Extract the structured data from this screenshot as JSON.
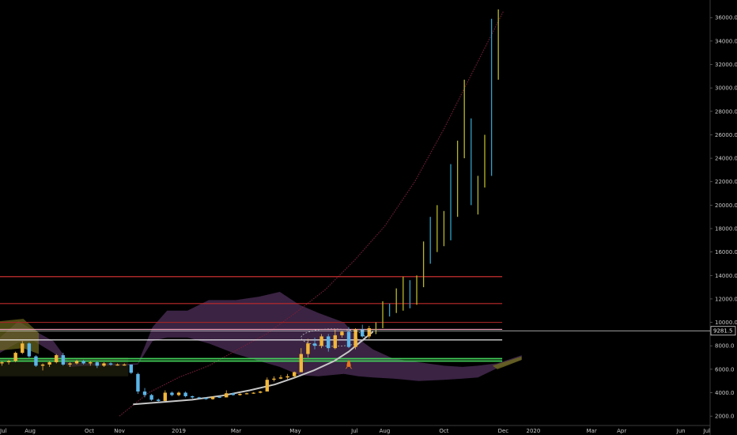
{
  "chart_data": {
    "type": "candlestick",
    "title": "",
    "xlabel": "",
    "ylabel": "",
    "x_range": [
      "2018-07",
      "2020-07"
    ],
    "ylim": [
      1200,
      37500
    ],
    "y_ticks": [
      2000,
      4000,
      6000,
      8000,
      10000,
      12000,
      14000,
      16000,
      18000,
      20000,
      22000,
      24000,
      26000,
      28000,
      30000,
      32000,
      34000,
      36000
    ],
    "y_tick_labels": [
      "2000.0",
      "4000.0",
      "6000.0",
      "8000.0",
      "10000.0",
      "12000.0",
      "14000.0",
      "16000.0",
      "18000.0",
      "20000.0",
      "22000.0",
      "24000.0",
      "26000.0",
      "28000.0",
      "30000.0",
      "32000.0",
      "34000.0",
      "36000.0"
    ],
    "x_ticks": [
      {
        "label": "Jul",
        "date": "2018-07-01"
      },
      {
        "label": "Aug",
        "date": "2018-08-01"
      },
      {
        "label": "Oct",
        "date": "2018-10-01"
      },
      {
        "label": "Nov",
        "date": "2018-11-01"
      },
      {
        "label": "2019",
        "date": "2019-01-01"
      },
      {
        "label": "Mar",
        "date": "2019-03-01"
      },
      {
        "label": "May",
        "date": "2019-05-01"
      },
      {
        "label": "Jul",
        "date": "2019-07-01"
      },
      {
        "label": "Aug",
        "date": "2019-08-01"
      },
      {
        "label": "Oct",
        "date": "2019-10-01"
      },
      {
        "label": "Dec",
        "date": "2019-12-01"
      },
      {
        "label": "2020",
        "date": "2020-01-01"
      },
      {
        "label": "Mar",
        "date": "2020-03-01"
      },
      {
        "label": "Apr",
        "date": "2020-04-01"
      },
      {
        "label": "Jun",
        "date": "2020-06-01"
      },
      {
        "label": "Jul",
        "date": "2020-07-01"
      }
    ],
    "current_price": 9281.5,
    "current_price_label": "9281.5",
    "colors": {
      "background": "#000000",
      "up": "#f2b63a",
      "down": "#5bb5e8",
      "projection_up": "#b8b828",
      "projection_down": "#2fa3c9",
      "cloud": "#6a3f7a",
      "cloud_bull": "#6e6a1e",
      "curve": "#7a1f3a",
      "arc": "#c7c7c7",
      "rocket": "#e8741c"
    },
    "horizontal_lines": [
      {
        "price": 13900,
        "color": "#e03535"
      },
      {
        "price": 11600,
        "color": "#c02a2a"
      },
      {
        "price": 10000,
        "color": "#a02525"
      },
      {
        "price": 9400,
        "color": "#f0a0b8"
      },
      {
        "price": 8500,
        "color": "#ffffff"
      },
      {
        "price": 6900,
        "color": "#43d15a"
      },
      {
        "price": 6700,
        "color": "#43d15a"
      }
    ],
    "cloud_upper": [
      [
        "2018-07-01",
        8700
      ],
      [
        "2018-07-20",
        10100
      ],
      [
        "2018-08-05",
        9300
      ],
      [
        "2018-08-25",
        8400
      ],
      [
        "2018-09-10",
        6600
      ],
      [
        "2018-10-01",
        6500
      ],
      [
        "2018-10-20",
        6500
      ],
      [
        "2018-11-05",
        6450
      ],
      [
        "2018-11-20",
        6500
      ],
      [
        "2018-12-05",
        9600
      ],
      [
        "2018-12-20",
        11000
      ],
      [
        "2019-01-10",
        11000
      ],
      [
        "2019-02-01",
        11900
      ],
      [
        "2019-03-01",
        11900
      ],
      [
        "2019-03-25",
        12200
      ],
      [
        "2019-04-15",
        12600
      ],
      [
        "2019-05-05",
        11500
      ],
      [
        "2019-05-25",
        10800
      ],
      [
        "2019-06-20",
        10000
      ],
      [
        "2019-07-05",
        8600
      ],
      [
        "2019-07-20",
        7700
      ],
      [
        "2019-08-10",
        6900
      ],
      [
        "2019-09-05",
        6600
      ],
      [
        "2019-10-01",
        6300
      ],
      [
        "2019-10-20",
        6200
      ],
      [
        "2019-11-05",
        6300
      ],
      [
        "2019-11-25",
        6500
      ],
      [
        "2019-12-20",
        7200
      ]
    ],
    "cloud_lower": [
      [
        "2018-07-01",
        7400
      ],
      [
        "2018-07-20",
        8300
      ],
      [
        "2018-08-05",
        8400
      ],
      [
        "2018-08-25",
        7400
      ],
      [
        "2018-09-10",
        6200
      ],
      [
        "2018-10-01",
        6300
      ],
      [
        "2018-10-20",
        6300
      ],
      [
        "2018-11-05",
        6300
      ],
      [
        "2018-11-20",
        6400
      ],
      [
        "2018-12-05",
        8400
      ],
      [
        "2018-12-20",
        8700
      ],
      [
        "2019-01-10",
        8700
      ],
      [
        "2019-02-01",
        8200
      ],
      [
        "2019-03-01",
        7300
      ],
      [
        "2019-03-25",
        6700
      ],
      [
        "2019-04-15",
        6200
      ],
      [
        "2019-05-05",
        5500
      ],
      [
        "2019-05-25",
        5400
      ],
      [
        "2019-06-20",
        5600
      ],
      [
        "2019-07-05",
        5400
      ],
      [
        "2019-07-20",
        5300
      ],
      [
        "2019-08-10",
        5200
      ],
      [
        "2019-09-05",
        5000
      ],
      [
        "2019-10-01",
        5100
      ],
      [
        "2019-10-20",
        5200
      ],
      [
        "2019-11-05",
        5300
      ],
      [
        "2019-11-25",
        6100
      ],
      [
        "2019-12-20",
        6800
      ]
    ],
    "growth_curve": [
      [
        "2018-11-01",
        2000
      ],
      [
        "2018-12-01",
        4000
      ],
      [
        "2019-01-01",
        5300
      ],
      [
        "2019-02-01",
        6300
      ],
      [
        "2019-03-01",
        7600
      ],
      [
        "2019-04-01",
        9000
      ],
      [
        "2019-05-01",
        10800
      ],
      [
        "2019-06-01",
        12800
      ],
      [
        "2019-07-01",
        15300
      ],
      [
        "2019-08-01",
        18200
      ],
      [
        "2019-09-01",
        22000
      ],
      [
        "2019-10-01",
        26500
      ],
      [
        "2019-11-01",
        31600
      ],
      [
        "2019-12-01",
        36500
      ]
    ],
    "arc": [
      [
        "2018-11-15",
        3000
      ],
      [
        "2018-12-15",
        3200
      ],
      [
        "2019-01-15",
        3400
      ],
      [
        "2019-02-15",
        3750
      ],
      [
        "2019-03-15",
        4200
      ],
      [
        "2019-04-10",
        4700
      ],
      [
        "2019-05-01",
        5300
      ],
      [
        "2019-05-20",
        5900
      ],
      [
        "2019-06-10",
        6700
      ],
      [
        "2019-06-25",
        7500
      ],
      [
        "2019-07-08",
        8400
      ],
      [
        "2019-07-20",
        9200
      ]
    ],
    "candles": [
      [
        "2018-07-03",
        6500,
        6700,
        6300,
        6600
      ],
      [
        "2018-07-10",
        6600,
        6800,
        6400,
        6700
      ],
      [
        "2018-07-17",
        6700,
        7500,
        6600,
        7400
      ],
      [
        "2018-07-24",
        7400,
        8400,
        7300,
        8200
      ],
      [
        "2018-07-31",
        8200,
        8300,
        7000,
        7100
      ],
      [
        "2018-08-07",
        7100,
        7200,
        6200,
        6300
      ],
      [
        "2018-08-14",
        6300,
        6500,
        5900,
        6400
      ],
      [
        "2018-08-21",
        6400,
        6700,
        6200,
        6600
      ],
      [
        "2018-08-28",
        6600,
        7300,
        6500,
        7200
      ],
      [
        "2018-09-04",
        7200,
        7400,
        6300,
        6400
      ],
      [
        "2018-09-11",
        6400,
        6600,
        6200,
        6500
      ],
      [
        "2018-09-18",
        6500,
        6800,
        6400,
        6700
      ],
      [
        "2018-09-25",
        6700,
        6800,
        6400,
        6500
      ],
      [
        "2018-10-02",
        6500,
        6700,
        6300,
        6600
      ],
      [
        "2018-10-09",
        6600,
        6700,
        6100,
        6300
      ],
      [
        "2018-10-16",
        6300,
        6600,
        6200,
        6500
      ],
      [
        "2018-10-23",
        6500,
        6600,
        6300,
        6400
      ],
      [
        "2018-10-30",
        6400,
        6500,
        6300,
        6400
      ],
      [
        "2018-11-06",
        6400,
        6500,
        6300,
        6400
      ],
      [
        "2018-11-13",
        6400,
        6400,
        5600,
        5700
      ],
      [
        "2018-11-20",
        5600,
        5700,
        3900,
        4100
      ],
      [
        "2018-11-27",
        4100,
        4400,
        3600,
        3800
      ],
      [
        "2018-12-04",
        3800,
        3900,
        3300,
        3400
      ],
      [
        "2018-12-11",
        3400,
        3500,
        3200,
        3300
      ],
      [
        "2018-12-18",
        3300,
        4200,
        3300,
        4000
      ],
      [
        "2018-12-25",
        4000,
        4100,
        3700,
        3800
      ],
      [
        "2019-01-01",
        3800,
        4100,
        3700,
        4000
      ],
      [
        "2019-01-08",
        4000,
        4100,
        3600,
        3700
      ],
      [
        "2019-01-15",
        3700,
        3750,
        3500,
        3600
      ],
      [
        "2019-01-22",
        3600,
        3650,
        3450,
        3550
      ],
      [
        "2019-01-29",
        3550,
        3600,
        3400,
        3450
      ],
      [
        "2019-02-05",
        3450,
        3700,
        3400,
        3650
      ],
      [
        "2019-02-12",
        3650,
        3700,
        3550,
        3600
      ],
      [
        "2019-02-19",
        3600,
        4200,
        3600,
        3950
      ],
      [
        "2019-02-26",
        3950,
        4000,
        3750,
        3800
      ],
      [
        "2019-03-05",
        3800,
        3950,
        3750,
        3900
      ],
      [
        "2019-03-12",
        3900,
        4000,
        3850,
        3950
      ],
      [
        "2019-03-19",
        3950,
        4050,
        3900,
        4000
      ],
      [
        "2019-03-26",
        4000,
        4150,
        3950,
        4100
      ],
      [
        "2019-04-02",
        4100,
        5300,
        4100,
        5100
      ],
      [
        "2019-04-09",
        5100,
        5400,
        4950,
        5200
      ],
      [
        "2019-04-16",
        5200,
        5500,
        5150,
        5300
      ],
      [
        "2019-04-23",
        5300,
        5600,
        5150,
        5400
      ],
      [
        "2019-04-30",
        5400,
        5800,
        5250,
        5750
      ],
      [
        "2019-05-07",
        5750,
        7800,
        5750,
        7300
      ],
      [
        "2019-05-14",
        7300,
        8600,
        7000,
        8200
      ],
      [
        "2019-05-21",
        8200,
        8700,
        7700,
        8000
      ],
      [
        "2019-05-28",
        8000,
        9000,
        7800,
        8800
      ],
      [
        "2019-06-04",
        8800,
        9000,
        7500,
        7800
      ],
      [
        "2019-06-11",
        7800,
        9400,
        7700,
        8900
      ],
      [
        "2019-06-18",
        8900,
        9300,
        8700,
        9200
      ],
      [
        "2019-06-25",
        9200,
        9600,
        7800,
        7900
      ],
      [
        "2019-07-02",
        7900,
        9500,
        7700,
        9400
      ],
      [
        "2019-07-09",
        9400,
        9800,
        8700,
        8800
      ],
      [
        "2019-07-16",
        8800,
        9700,
        8600,
        9500
      ]
    ],
    "projection": [
      [
        "2019-07-23",
        9000,
        10000
      ],
      [
        "2019-07-30",
        9500,
        11800
      ],
      [
        "2019-08-06",
        10500,
        11600
      ],
      [
        "2019-08-13",
        10800,
        12900
      ],
      [
        "2019-08-20",
        11000,
        13900
      ],
      [
        "2019-08-27",
        11200,
        13600
      ],
      [
        "2019-09-03",
        11500,
        14000
      ],
      [
        "2019-09-10",
        13000,
        16900
      ],
      [
        "2019-09-17",
        15000,
        19000
      ],
      [
        "2019-09-24",
        16000,
        20000
      ],
      [
        "2019-10-01",
        16500,
        19500
      ],
      [
        "2019-10-08",
        17000,
        23500
      ],
      [
        "2019-10-15",
        19000,
        25500
      ],
      [
        "2019-10-22",
        24000,
        30700
      ],
      [
        "2019-10-29",
        20000,
        27400
      ],
      [
        "2019-11-05",
        19200,
        22500
      ],
      [
        "2019-11-12",
        21500,
        26000
      ],
      [
        "2019-11-19",
        22500,
        35900
      ],
      [
        "2019-11-26",
        30700,
        36700
      ]
    ]
  }
}
